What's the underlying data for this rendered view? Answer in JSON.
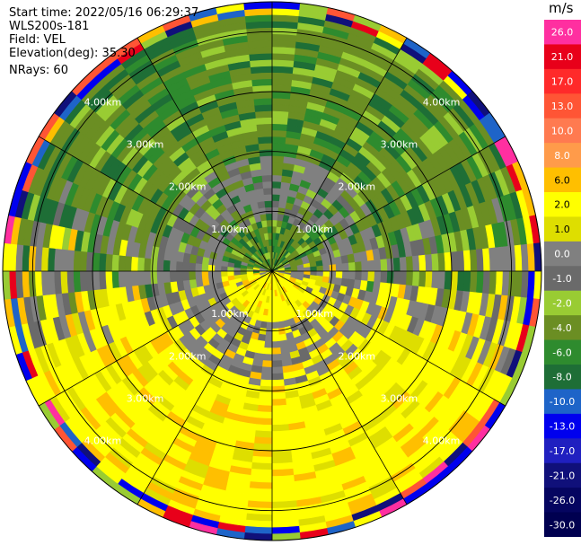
{
  "header": {
    "start_time": "Start time: 2022/05/16 06:29:37",
    "instrument": "WLS200s-181",
    "field": "Field: VEL",
    "elevation": "Elevation(deg): 35.30",
    "nrays": "NRays: 60"
  },
  "chart_data": {
    "type": "heatmap",
    "projection": "polar PPI",
    "field": "VEL",
    "nrays": 60,
    "range_max_km": 4.5,
    "range_rings": [
      "1.00km",
      "2.00km",
      "3.00km",
      "4.00km"
    ],
    "ring_values_km": [
      1,
      2,
      3,
      4
    ],
    "unit_label": "m/s",
    "colorbar_ticks": [
      "26.0",
      "21.0",
      "17.0",
      "13.0",
      "10.0",
      "8.0",
      "6.0",
      "2.0",
      "1.0",
      "0.0",
      "-1.0",
      "-2.0",
      "-4.0",
      "-6.0",
      "-8.0",
      "-10.0",
      "-13.0",
      "-17.0",
      "-21.0",
      "-26.0",
      "-30.0"
    ],
    "colorbar_colors": [
      "#ff2fa0",
      "#e8001a",
      "#ff2a2a",
      "#ff5535",
      "#ff7a50",
      "#ff9b4a",
      "#ffbf00",
      "#ffff00",
      "#dede00",
      "#808080",
      "#6a6a6a",
      "#99cc33",
      "#6b8e23",
      "#2e8b2e",
      "#1e6e36",
      "#1e64c8",
      "#0000ee",
      "#2020c0",
      "#10107a",
      "#050560",
      "#000050"
    ],
    "sectors_summary": [
      {
        "region": "north half (upper)",
        "dominant_velocity_m_s": -4,
        "colors": [
          "#6b8e23",
          "#2e8b2e",
          "#99cc33"
        ]
      },
      {
        "region": "south half (lower)",
        "dominant_velocity_m_s": 2,
        "colors": [
          "#ffff00",
          "#dede00",
          "#ffbf00"
        ]
      },
      {
        "region": "near range ring 1-2 km",
        "dominant_velocity_m_s": 0,
        "colors": [
          "#808080",
          "#6a6a6a"
        ]
      }
    ]
  }
}
